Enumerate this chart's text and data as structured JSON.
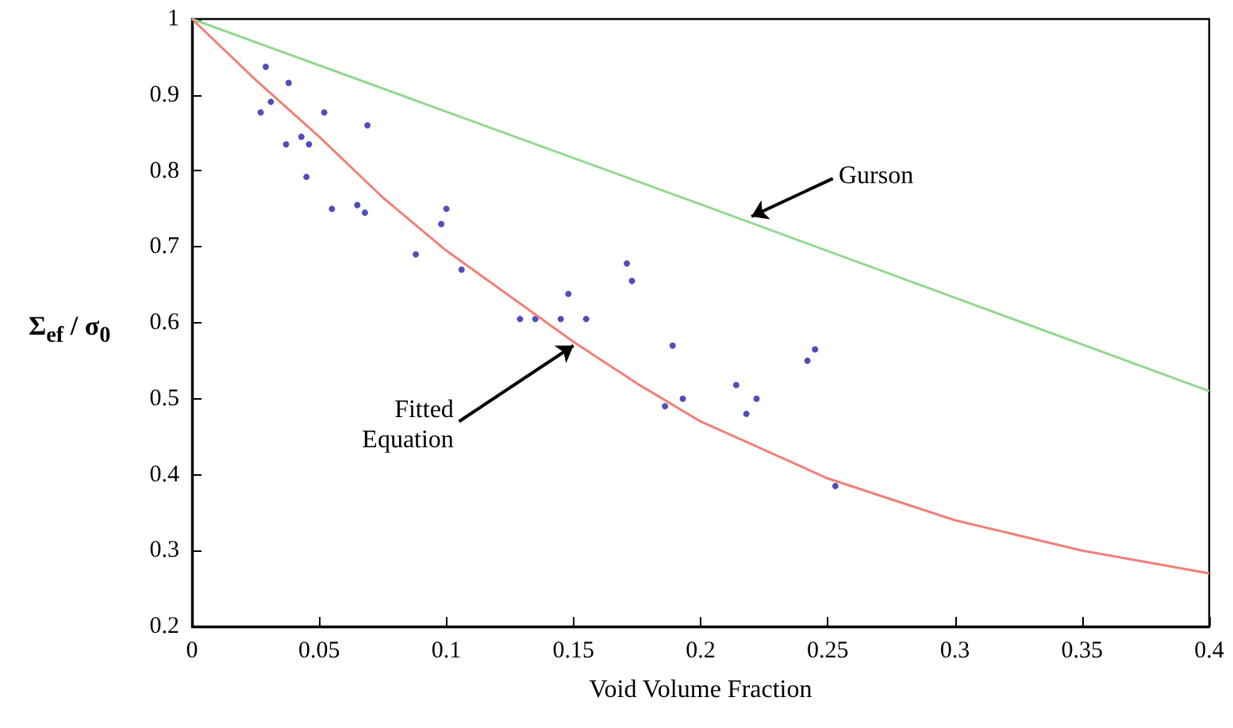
{
  "chart_data": {
    "type": "scatter",
    "xlabel": "Void Volume Fraction",
    "ylabel": "Σ$_{ef}$ / σ$_{0}$",
    "xlim": [
      0,
      0.4
    ],
    "xticks": [
      0,
      0.05,
      0.1,
      0.15,
      0.2,
      0.25,
      0.3,
      0.35,
      0.4
    ],
    "ylim": [
      0.2,
      1
    ],
    "yticks": [
      0.2,
      0.3,
      0.4,
      0.5,
      0.6,
      0.7,
      0.8,
      0.9,
      1
    ],
    "grid": false,
    "marker": "circle",
    "series": [
      {
        "color": "#2323a8",
        "x": [
          0.027,
          0.029,
          0.031,
          0.037,
          0.038,
          0.043,
          0.045,
          0.046,
          0.052,
          0.055,
          0.065,
          0.068,
          0.069,
          0.088,
          0.098,
          0.1,
          0.106,
          0.129,
          0.135,
          0.145,
          0.148,
          0.155,
          0.171,
          0.173,
          0.186,
          0.189,
          0.193,
          0.214,
          0.218,
          0.222,
          0.242,
          0.245,
          0.253
        ],
        "values": [
          0.877,
          0.937,
          0.891,
          0.835,
          0.916,
          0.845,
          0.792,
          0.835,
          0.877,
          0.75,
          0.755,
          0.745,
          0.86,
          0.69,
          0.73,
          0.75,
          0.67,
          0.605,
          0.605,
          0.605,
          0.638,
          0.605,
          0.678,
          0.655,
          0.49,
          0.57,
          0.5,
          0.518,
          0.48,
          0.5,
          0.55,
          0.565,
          0.385
        ]
      },
      {
        "type": "line",
        "color": "#90d890",
        "marker": "none",
        "line_style": "solid",
        "x": [
          0,
          0.1,
          0.2,
          0.3,
          0.4
        ],
        "values": [
          1,
          0.878,
          0.756,
          0.633,
          0.51
        ]
      },
      {
        "type": "line",
        "color": "#f08078",
        "marker": "none",
        "line_style": "solid",
        "x": [
          0,
          0.025,
          0.05,
          0.075,
          0.1,
          0.125,
          0.15,
          0.175,
          0.2,
          0.25,
          0.3,
          0.35,
          0.4
        ],
        "values": [
          1,
          0.92,
          0.845,
          0.765,
          0.695,
          0.635,
          0.575,
          0.52,
          0.47,
          0.395,
          0.34,
          0.3,
          0.27
        ]
      }
    ],
    "annotations": [
      {
        "text": "Gurson",
        "x": 0.22,
        "y": 0.74
      },
      {
        "text": "Fitted\nEquation",
        "x": 0.15,
        "y": 0.57
      }
    ]
  }
}
